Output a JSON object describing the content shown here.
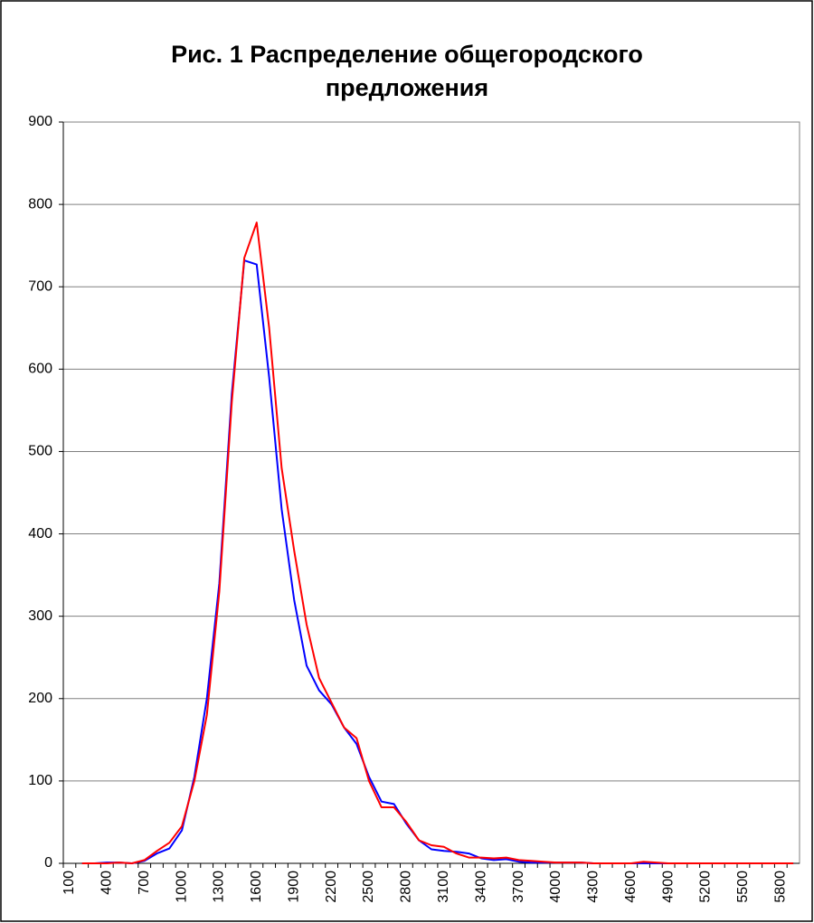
{
  "chart_data": {
    "type": "line",
    "title": "Рис. 1 Распределение общегородского предложения",
    "categories": [
      "100",
      null,
      null,
      "400",
      null,
      null,
      "700",
      null,
      null,
      "1000",
      null,
      null,
      "1300",
      null,
      null,
      "1600",
      null,
      null,
      "1900",
      null,
      null,
      "2200",
      null,
      null,
      "2500",
      null,
      null,
      "2800",
      null,
      null,
      "3100",
      null,
      null,
      "3400",
      null,
      null,
      "3700",
      null,
      null,
      "4000",
      null,
      null,
      "4300",
      null,
      null,
      "4600",
      null,
      null,
      "4900",
      null,
      null,
      "5200",
      null,
      null,
      "5500",
      null,
      null,
      "5800",
      null
    ],
    "series": [
      {
        "color": "#0000ff",
        "values": [
          null,
          0,
          0,
          1,
          1,
          0,
          3,
          12,
          18,
          40,
          105,
          200,
          340,
          570,
          732,
          727,
          590,
          430,
          320,
          240,
          210,
          193,
          165,
          145,
          105,
          75,
          72,
          48,
          28,
          17,
          15,
          14,
          12,
          6,
          4,
          5,
          2,
          1,
          1,
          1,
          1,
          1,
          0,
          0,
          0,
          0,
          0,
          0,
          0,
          0,
          0,
          0,
          0,
          0,
          0,
          0,
          0,
          0,
          0
        ]
      },
      {
        "color": "#ff0000",
        "values": [
          null,
          0,
          0,
          0,
          1,
          0,
          4,
          15,
          25,
          45,
          100,
          180,
          330,
          560,
          735,
          778,
          650,
          480,
          380,
          290,
          225,
          195,
          165,
          152,
          100,
          68,
          68,
          50,
          28,
          22,
          20,
          12,
          7,
          7,
          6,
          7,
          4,
          3,
          2,
          1,
          1,
          1,
          0,
          0,
          0,
          0,
          2,
          1,
          0,
          0,
          0,
          0,
          0,
          0,
          0,
          0,
          0,
          0,
          0
        ]
      }
    ],
    "ylim": [
      0,
      900
    ],
    "yticks": [
      0,
      100,
      200,
      300,
      400,
      500,
      600,
      700,
      800,
      900
    ],
    "grid": true
  }
}
